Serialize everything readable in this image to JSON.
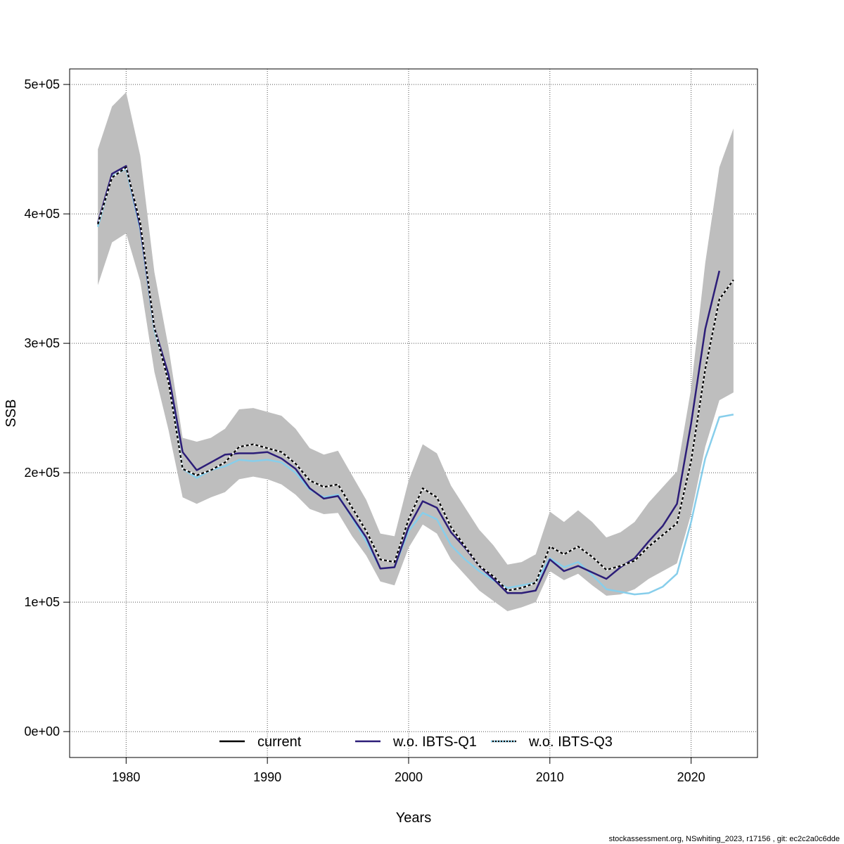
{
  "footer": "stockassessment.org, NSwhiting_2023, r17156 , git: ec2c2a0c6dde",
  "chart_data": {
    "type": "line",
    "xlabel": "Years",
    "ylabel": "SSB",
    "xlim": [
      1976,
      2024.7
    ],
    "ylim": [
      -20000,
      512000
    ],
    "x_ticks": [
      1980,
      1990,
      2000,
      2010,
      2020
    ],
    "x_tick_labels": [
      "1980",
      "1990",
      "2000",
      "2010",
      "2020"
    ],
    "y_ticks": [
      0,
      100000,
      200000,
      300000,
      400000,
      500000
    ],
    "y_tick_labels": [
      "0e+00",
      "1e+05",
      "2e+05",
      "3e+05",
      "4e+05",
      "5e+05"
    ],
    "grid": true,
    "legend_position": "bottom",
    "colors": {
      "band": "#bebebe",
      "current": "#000000",
      "wo_q1": "#2c1d78",
      "wo_q3": "#87ceeb",
      "grid": "#555555"
    },
    "band": {
      "x": [
        1978,
        1979,
        1980,
        1981,
        1982,
        1983,
        1984,
        1985,
        1986,
        1987,
        1988,
        1989,
        1990,
        1991,
        1992,
        1993,
        1994,
        1995,
        1996,
        1997,
        1998,
        1999,
        2000,
        2001,
        2002,
        2003,
        2004,
        2005,
        2006,
        2007,
        2008,
        2009,
        2010,
        2011,
        2012,
        2013,
        2014,
        2015,
        2016,
        2017,
        2018,
        2019,
        2020,
        2021,
        2022,
        2023
      ],
      "lower": [
        345000,
        378000,
        385000,
        348000,
        278000,
        233000,
        181000,
        176000,
        181000,
        185000,
        195000,
        197000,
        195000,
        191000,
        183000,
        172000,
        168000,
        169000,
        151000,
        136000,
        116000,
        113000,
        142000,
        160000,
        153000,
        133000,
        121000,
        109000,
        101000,
        93000,
        96000,
        100000,
        124000,
        117000,
        122000,
        113000,
        105000,
        106000,
        110000,
        118000,
        124000,
        130000,
        168000,
        220000,
        256000,
        262000
      ],
      "upper": [
        450000,
        483000,
        494000,
        445000,
        355000,
        297000,
        227000,
        224000,
        227000,
        234000,
        249000,
        250000,
        247000,
        244000,
        234000,
        219000,
        214000,
        217000,
        198000,
        179000,
        153000,
        151000,
        194000,
        222000,
        215000,
        190000,
        173000,
        156000,
        144000,
        129000,
        131000,
        137000,
        170000,
        162000,
        171000,
        162000,
        150000,
        154000,
        162000,
        177000,
        189000,
        201000,
        265000,
        362000,
        436000,
        466000
      ]
    },
    "series": [
      {
        "name": "current",
        "x": [
          1978,
          1979,
          1980,
          1981,
          1982,
          1983,
          1984,
          1985,
          1986,
          1987,
          1988,
          1989,
          1990,
          1991,
          1992,
          1993,
          1994,
          1995,
          1996,
          1997,
          1998,
          1999,
          2000,
          2001,
          2002,
          2003,
          2004,
          2005,
          2006,
          2007,
          2008,
          2009,
          2010,
          2011,
          2012,
          2013,
          2014,
          2015,
          2016,
          2017,
          2018,
          2019,
          2020,
          2021,
          2022,
          2023
        ],
        "values": [
          392000,
          428000,
          436000,
          393000,
          312000,
          270000,
          203000,
          198000,
          202000,
          208000,
          220000,
          222000,
          219000,
          216000,
          207000,
          194000,
          189000,
          191000,
          173000,
          155000,
          133000,
          131000,
          164000,
          188000,
          181000,
          158000,
          143000,
          128000,
          120000,
          109000,
          111000,
          115000,
          143000,
          137000,
          143000,
          135000,
          125000,
          128000,
          132000,
          143000,
          152000,
          161000,
          209000,
          280000,
          334000,
          349000
        ]
      },
      {
        "name": "w.o. IBTS-Q1",
        "x": [
          1978,
          1979,
          1980,
          1981,
          1982,
          1983,
          1984,
          1985,
          1986,
          1987,
          1988,
          1989,
          1990,
          1991,
          1992,
          1993,
          1994,
          1995,
          1996,
          1997,
          1998,
          1999,
          2000,
          2001,
          2002,
          2003,
          2004,
          2005,
          2006,
          2007,
          2008,
          2009,
          2010,
          2011,
          2012,
          2013,
          2014,
          2015,
          2016,
          2017,
          2018,
          2019,
          2020,
          2021,
          2022
        ],
        "values": [
          393000,
          431000,
          437000,
          390000,
          312000,
          276000,
          216000,
          202000,
          208000,
          214000,
          215000,
          215000,
          216000,
          211000,
          203000,
          188000,
          180000,
          182000,
          166000,
          150000,
          126000,
          127000,
          158000,
          178000,
          173000,
          154000,
          142000,
          128000,
          118000,
          107000,
          107000,
          109000,
          133000,
          124000,
          128000,
          123000,
          118000,
          127000,
          134000,
          147000,
          159000,
          176000,
          238000,
          311000,
          356000
        ]
      },
      {
        "name": "w.o. IBTS-Q3",
        "x": [
          1978,
          1979,
          1980,
          1981,
          1982,
          1983,
          1984,
          1985,
          1986,
          1987,
          1988,
          1989,
          1990,
          1991,
          1992,
          1993,
          1994,
          1995,
          1996,
          1997,
          1998,
          1999,
          2000,
          2001,
          2002,
          2003,
          2004,
          2005,
          2006,
          2007,
          2008,
          2009,
          2010,
          2011,
          2012,
          2013,
          2014,
          2015,
          2016,
          2017,
          2018,
          2019,
          2020,
          2021,
          2022,
          2023
        ],
        "values": [
          390000,
          429000,
          435000,
          388000,
          310000,
          272000,
          203000,
          196000,
          202000,
          205000,
          210000,
          209000,
          210000,
          208000,
          200000,
          187000,
          181000,
          183000,
          165000,
          147000,
          126000,
          127000,
          155000,
          169000,
          164000,
          144000,
          133000,
          124000,
          117000,
          111000,
          113000,
          115000,
          134000,
          127000,
          131000,
          121000,
          110000,
          108000,
          106000,
          107000,
          112000,
          122000,
          162000,
          211000,
          243000,
          245000
        ]
      }
    ],
    "legend": [
      {
        "label": "current",
        "line": "solid",
        "color": "#000000"
      },
      {
        "label": "w.o. IBTS-Q1",
        "line": "solid",
        "color": "#2c1d78"
      },
      {
        "label": "w.o. IBTS-Q3",
        "line": "dotted",
        "color": "#87ceeb"
      }
    ]
  }
}
